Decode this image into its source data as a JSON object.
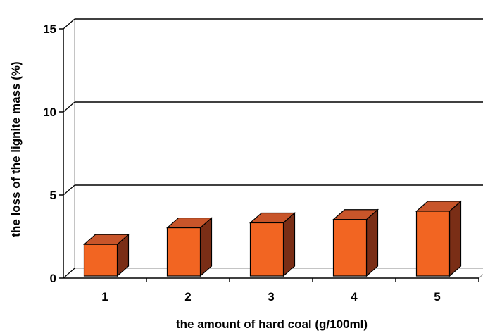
{
  "chart_data": {
    "type": "bar",
    "title": "",
    "xlabel": "the amount of hard coal (g/100ml)",
    "ylabel": "the loss of the lignite mass (%)",
    "categories": [
      "1",
      "2",
      "3",
      "4",
      "5"
    ],
    "values": [
      1.9,
      2.9,
      3.2,
      3.4,
      3.9
    ],
    "ylim": [
      0,
      15
    ],
    "yticks": [
      "0",
      "5",
      "10",
      "15"
    ],
    "style": "3d",
    "grid": true,
    "legend": "none",
    "colors": {
      "bar_front": "#F26522",
      "bar_top": "#C8552A",
      "bar_side": "#7A2E16",
      "gridline": "#000000"
    }
  }
}
